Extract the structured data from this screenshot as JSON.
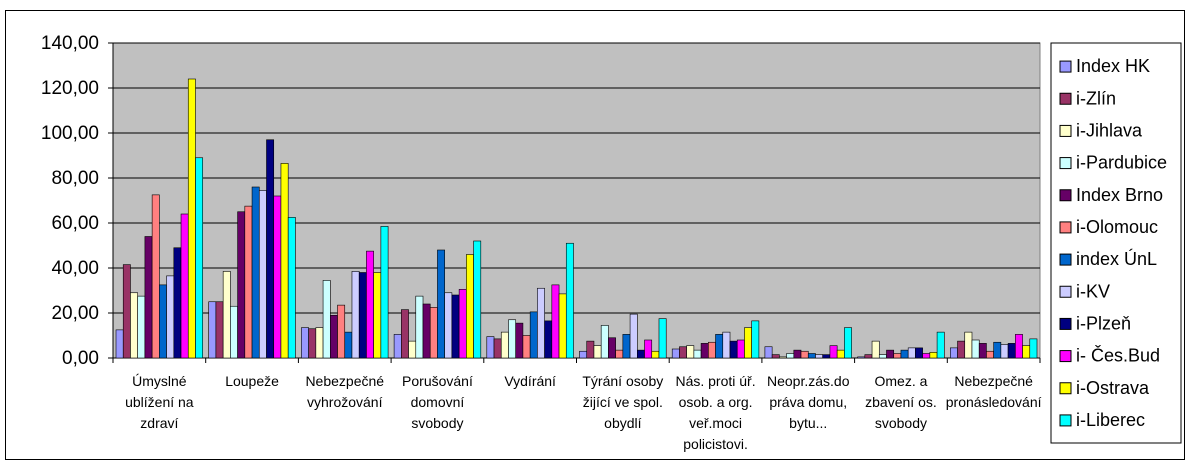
{
  "chart_data": {
    "type": "bar",
    "title": "",
    "xlabel": "",
    "ylabel": "",
    "ylim": [
      0,
      140
    ],
    "yticks": [
      "0,00",
      "20,00",
      "40,00",
      "60,00",
      "80,00",
      "100,00",
      "120,00",
      "140,00"
    ],
    "grid": true,
    "legend_position": "right",
    "plot_background": "#c0c0c0",
    "categories": [
      [
        "Úmyslné",
        "ublížení na",
        "zdraví"
      ],
      [
        "Loupeže"
      ],
      [
        "Nebezpečné",
        "vyhrožování"
      ],
      [
        "Porušování",
        "domovní",
        "svobody"
      ],
      [
        "Vydírání"
      ],
      [
        "Týrání osoby",
        "žijící ve spol.",
        "obydlí"
      ],
      [
        "Nás. proti úř.",
        "osob. a org.",
        "veř.moci",
        "policistovi."
      ],
      [
        "Neopr.zás.do",
        "práva domu,",
        "bytu..."
      ],
      [
        "Omez. a",
        "zbavení os.",
        "svobody"
      ],
      [
        "Nebezpečné",
        "pronásledování"
      ]
    ],
    "series": [
      {
        "name": "Index HK",
        "color": "#9999ff",
        "values": [
          12.5,
          25,
          13.5,
          10.5,
          9.5,
          3,
          4,
          5,
          0.5,
          4.5
        ]
      },
      {
        "name": "i-Zlín",
        "color": "#993366",
        "values": [
          41.5,
          25,
          13,
          21.5,
          8.5,
          7.5,
          5,
          1.5,
          1.5,
          7.5
        ]
      },
      {
        "name": "i-Jihlava",
        "color": "#ffffcc",
        "values": [
          29,
          38.5,
          13.5,
          7.5,
          11.5,
          5.5,
          5.5,
          0.5,
          7.5,
          11.5
        ]
      },
      {
        "name": "i-Pardubice",
        "color": "#ccffff",
        "values": [
          27.5,
          23,
          34.5,
          27.5,
          17,
          14.5,
          3.5,
          2,
          1.5,
          8
        ]
      },
      {
        "name": "Index Brno",
        "color": "#660066",
        "values": [
          54,
          65,
          19,
          24,
          15.5,
          9,
          6.5,
          3.5,
          3.5,
          6.5
        ]
      },
      {
        "name": "i-Olomouc",
        "color": "#ff8080",
        "values": [
          72.5,
          67.5,
          23.5,
          22.5,
          10,
          3.5,
          7,
          3,
          2,
          3
        ]
      },
      {
        "name": "index ÚnL",
        "color": "#0066cc",
        "values": [
          32.5,
          76,
          11.5,
          48,
          20.5,
          10.5,
          10.5,
          2,
          3.5,
          7
        ]
      },
      {
        "name": "i-KV",
        "color": "#ccccff",
        "values": [
          36.5,
          74.5,
          38.5,
          29,
          31,
          19.5,
          11.5,
          1.5,
          4.5,
          6
        ]
      },
      {
        "name": "i-Plzeň",
        "color": "#000080",
        "values": [
          49,
          97,
          38,
          28,
          16.5,
          3.5,
          7.5,
          1.5,
          4.5,
          6.5
        ]
      },
      {
        "name": "i- Čes.Bud",
        "color": "#ff00ff",
        "values": [
          64,
          72,
          47.5,
          30.5,
          32.5,
          8,
          8,
          5.5,
          2,
          10.5
        ]
      },
      {
        "name": "i-Ostrava",
        "color": "#ffff00",
        "values": [
          124,
          86.5,
          38,
          46,
          28.5,
          3,
          13.5,
          3.5,
          2.5,
          5.5
        ]
      },
      {
        "name": "i-Liberec",
        "color": "#00ffff",
        "values": [
          89,
          62.5,
          58.5,
          52,
          51,
          17.5,
          16.5,
          13.5,
          11.5,
          8.5
        ]
      }
    ]
  }
}
